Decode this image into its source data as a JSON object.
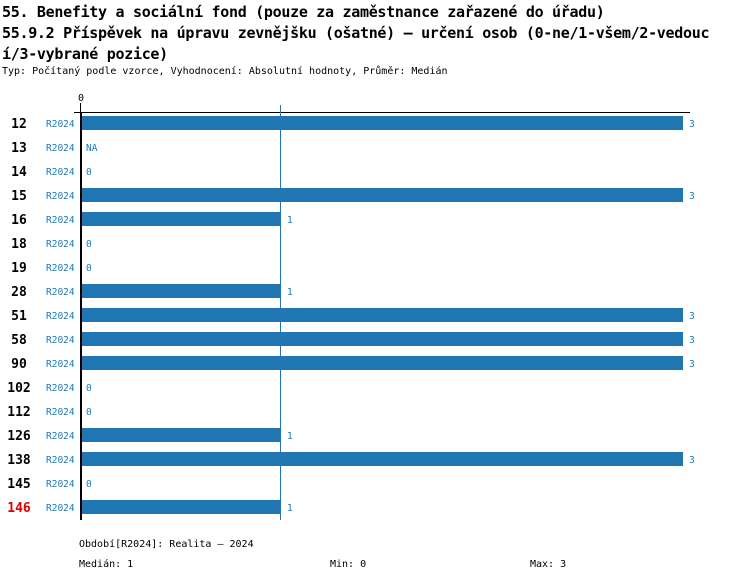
{
  "header": {
    "title_line1": "55. Benefity a sociální fond (pouze za zaměstnance zařazené do úřadu)",
    "title_line2": "55.9.2 Příspěvek na úpravu zevnějšku (ošatné) – určení osob (0-ne/1-všem/2-vedouc",
    "title_line3": "í/3-vybrané pozice)",
    "subtitle": "Typ: Počítaný podle vzorce, Vyhodnocení: Absolutní hodnoty, Průměr: Medián"
  },
  "chart_data": {
    "type": "bar",
    "orientation": "horizontal",
    "title": "55.9.2 Příspěvek na úpravu zevnějšku (ošatné) – určení osob (0-ne/1-všem/2-vedoucí/3-vybrané pozice)",
    "period_label": "R2024",
    "categories": [
      "12",
      "13",
      "14",
      "15",
      "16",
      "18",
      "19",
      "28",
      "51",
      "58",
      "90",
      "102",
      "112",
      "126",
      "138",
      "145",
      "146"
    ],
    "values": [
      3,
      null,
      0,
      3,
      1,
      0,
      0,
      1,
      3,
      3,
      3,
      0,
      0,
      1,
      3,
      0,
      1
    ],
    "value_labels": [
      "3",
      "NA",
      "0",
      "3",
      "1",
      "0",
      "0",
      "1",
      "3",
      "3",
      "3",
      "0",
      "0",
      "1",
      "3",
      "0",
      "1"
    ],
    "xlim": [
      0,
      3
    ],
    "axis_zero_label": "0",
    "median_line_value": 1,
    "grid": false,
    "legend_position": "none",
    "bar_color": "#2077b4",
    "text_blue": "#2077b4",
    "highlight_categories": [
      "146"
    ],
    "highlight_color": "#dd0000"
  },
  "footer": {
    "period_info": "Období[R2024]: Realita – 2024",
    "median": "Medián: 1",
    "min": "Min: 0",
    "max": "Max: 3"
  }
}
